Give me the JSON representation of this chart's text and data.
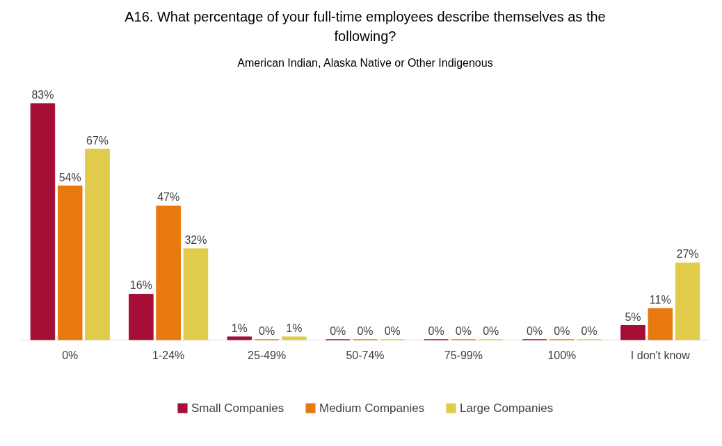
{
  "chart_data": {
    "type": "bar",
    "title": "A16. What percentage of your full-time employees describe themselves as the following?",
    "subtitle": "American Indian, Alaska Native or Other Indigenous",
    "categories": [
      "0%",
      "1-24%",
      "25-49%",
      "50-74%",
      "75-99%",
      "100%",
      "I don't know"
    ],
    "legend": "bottom",
    "tick_labels": "x",
    "series": [
      {
        "name": "Small Companies",
        "color": "#a50f35",
        "values": [
          83,
          16,
          1,
          0,
          0,
          0,
          5
        ],
        "value_labels": [
          "83%",
          "16%",
          "1%",
          "0%",
          "0%",
          "0%",
          "5%"
        ]
      },
      {
        "name": "Medium Companies",
        "color": "#e8790f",
        "values": [
          54,
          47,
          0,
          0,
          0,
          0,
          11
        ],
        "value_labels": [
          "54%",
          "47%",
          "0%",
          "0%",
          "0%",
          "0%",
          "11%"
        ]
      },
      {
        "name": "Large Companies",
        "color": "#e0cc4a",
        "values": [
          67,
          32,
          1,
          0,
          0,
          0,
          27
        ],
        "value_labels": [
          "67%",
          "32%",
          "1%",
          "0%",
          "0%",
          "0%",
          "27%"
        ]
      }
    ]
  }
}
